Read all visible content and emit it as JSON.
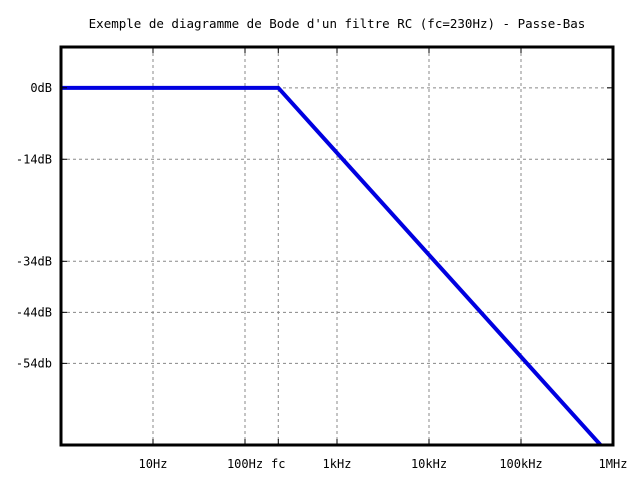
{
  "chart_data": {
    "type": "line",
    "title": "Exemple de diagramme de Bode d'un filtre RC (fc=230Hz) - Passe-Bas",
    "xlabel": "",
    "ylabel": "",
    "x_scale": "log",
    "xlim": [
      1,
      1000000
    ],
    "ylim": [
      -70,
      8
    ],
    "grid": true,
    "x_ticks": [
      {
        "value": 10,
        "label": "10Hz"
      },
      {
        "value": 100,
        "label": "100Hz"
      },
      {
        "value": 230,
        "label": "fc"
      },
      {
        "value": 1000,
        "label": "1kHz"
      },
      {
        "value": 10000,
        "label": "10kHz"
      },
      {
        "value": 100000,
        "label": "100kHz"
      },
      {
        "value": 1000000,
        "label": "1MHz"
      }
    ],
    "y_ticks": [
      {
        "value": 0,
        "label": "0dB"
      },
      {
        "value": -14,
        "label": "-14dB"
      },
      {
        "value": -34,
        "label": "-34dB"
      },
      {
        "value": -44,
        "label": "-44dB"
      },
      {
        "value": -54,
        "label": "-54db"
      }
    ],
    "series": [
      {
        "color": "#0000e0",
        "x": [
          1,
          230,
          1000000
        ],
        "y": [
          0,
          0,
          -72.7
        ]
      }
    ]
  }
}
